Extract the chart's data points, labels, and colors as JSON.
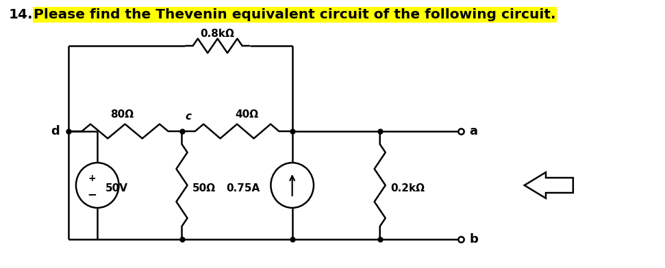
{
  "title_number": "14.",
  "title_text": "Please find the Thevenin equivalent circuit of the following circuit.",
  "highlight_color": "#FFFF00",
  "title_fontsize": 14.5,
  "background_color": "#ffffff",
  "resistor_08k_label": "0.8kΩ",
  "resistor_80_label": "80Ω",
  "resistor_40_label": "40Ω",
  "resistor_50_label": "50Ω",
  "resistor_02k_label": "0.2kΩ",
  "source_v_label": "50V",
  "source_i_label": "0.75A",
  "node_c_label": "c",
  "node_d_label": "d",
  "node_a_label": "a",
  "node_b_label": "b",
  "lw": 1.8
}
